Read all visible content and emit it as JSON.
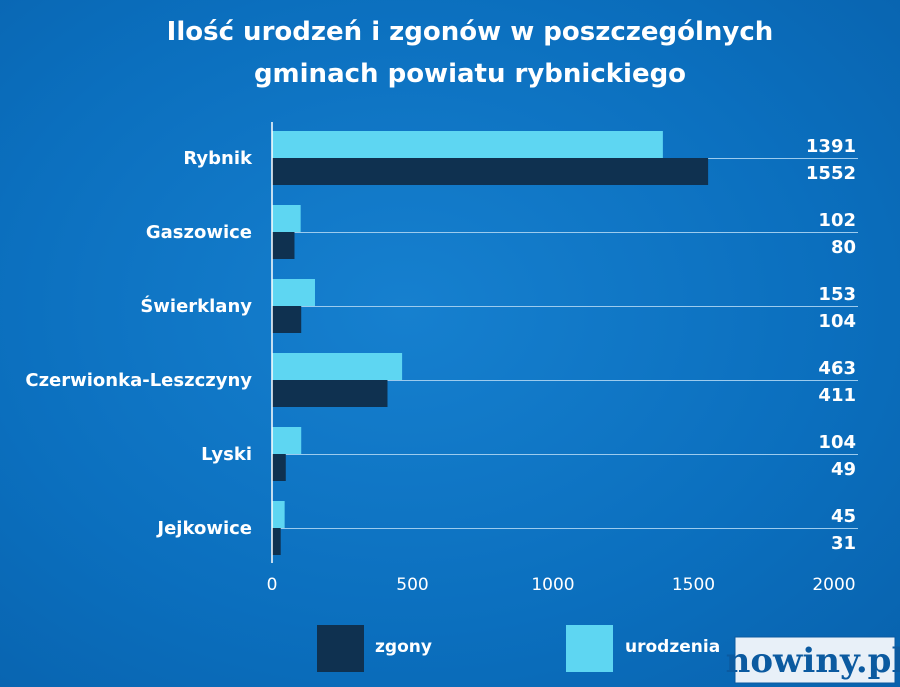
{
  "chart_data": {
    "type": "bar",
    "orientation": "horizontal",
    "title": "Ilość urodzeń i zgonów w poszczególnych gminach powiatu rybnickiego",
    "title_lines": [
      "Ilość urodzeń i zgonów w poszczególnych",
      "gminach powiatu rybnickiego"
    ],
    "categories": [
      "Rybnik",
      "Gaszowice",
      "Świerklany",
      "Czerwionka-Leszczyny",
      "Lyski",
      "Jejkowice"
    ],
    "series": [
      {
        "name": "urodzenia",
        "color": "#5ed6f2",
        "values": [
          1391,
          102,
          153,
          463,
          104,
          45
        ]
      },
      {
        "name": "zgony",
        "color": "#0f3150",
        "values": [
          1552,
          80,
          104,
          411,
          49,
          31
        ]
      }
    ],
    "xlim": [
      0,
      2000
    ],
    "xticks": [
      "0",
      "500",
      "1000",
      "1500",
      "2000"
    ],
    "xlabel": "",
    "ylabel": "",
    "legend": [
      {
        "label": "zgony",
        "color": "#0f3150"
      },
      {
        "label": "urodzenia",
        "color": "#5ed6f2"
      }
    ],
    "legend_position": "bottom",
    "grid": "horizontal lines under category rows"
  },
  "watermark": {
    "text": "nowiny.pl"
  }
}
